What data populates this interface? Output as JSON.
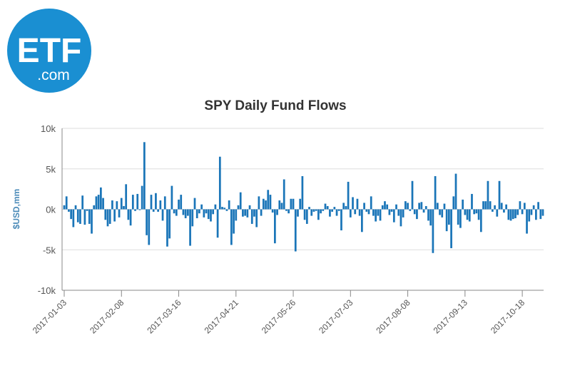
{
  "brand": {
    "logo_main": "ETF",
    "logo_sub": ".com",
    "color": "#1a8fd2"
  },
  "chart_data": {
    "type": "bar",
    "title": "SPY Daily Fund Flows",
    "xlabel": "",
    "ylabel": "$USD,mm",
    "ylim": [
      -10000,
      10000
    ],
    "yticks": [
      10000,
      5000,
      0,
      -5000,
      -10000
    ],
    "ytick_labels": [
      "10k",
      "5k",
      "0k",
      "-5k",
      "-10k"
    ],
    "xtick_labels": [
      "2017-01-03",
      "2017-02-08",
      "2017-03-16",
      "2017-04-21",
      "2017-05-26",
      "2017-07-03",
      "2017-08-08",
      "2017-09-13",
      "2017-10-18"
    ],
    "xtick_index": [
      0,
      25,
      50,
      75,
      100,
      125,
      150,
      175,
      200
    ],
    "grid": true,
    "bar_color": "#1a75b8",
    "series": [
      {
        "name": "SPY Daily Fund Flows",
        "values": [
          500,
          1600,
          -300,
          -1200,
          -2200,
          500,
          -1600,
          -1800,
          1700,
          -1900,
          -200,
          -1800,
          -3000,
          500,
          1600,
          1800,
          2700,
          1400,
          -1300,
          -2100,
          -1800,
          1100,
          -1500,
          1000,
          -1000,
          1400,
          400,
          3100,
          -1300,
          -2000,
          1800,
          -200,
          1900,
          -100,
          2900,
          8300,
          -3200,
          -4400,
          1800,
          -300,
          2000,
          -300,
          1100,
          -1400,
          1600,
          -4600,
          -3600,
          2900,
          -500,
          -800,
          1200,
          1800,
          -700,
          -1100,
          -800,
          -4500,
          -2100,
          1400,
          -1100,
          -500,
          600,
          -1000,
          -500,
          -1200,
          -1500,
          -600,
          600,
          -3500,
          6500,
          300,
          200,
          -200,
          1100,
          -4400,
          -3000,
          -1400,
          500,
          2100,
          -900,
          -800,
          -1000,
          500,
          -1800,
          -900,
          -2200,
          1600,
          -800,
          1300,
          1100,
          2400,
          1800,
          -400,
          -4200,
          -700,
          1100,
          800,
          3700,
          -200,
          -500,
          1300,
          1300,
          -5200,
          -900,
          1300,
          4100,
          -1300,
          -1800,
          300,
          -800,
          -300,
          -200,
          -1300,
          -500,
          -200,
          700,
          400,
          -900,
          -300,
          300,
          -800,
          -200,
          -2600,
          800,
          400,
          3400,
          -1000,
          1500,
          -600,
          1300,
          -800,
          -2800,
          800,
          -300,
          -600,
          1600,
          -800,
          -1500,
          -800,
          -1400,
          500,
          1000,
          600,
          -700,
          -300,
          -1600,
          600,
          -800,
          -2100,
          -1000,
          1000,
          800,
          -200,
          3500,
          -600,
          -1200,
          800,
          900,
          -400,
          400,
          -1400,
          -2000,
          -5400,
          4100,
          800,
          -700,
          -1000,
          700,
          -2700,
          -1900,
          -4800,
          1600,
          4400,
          -1900,
          -2300,
          1200,
          -700,
          -1300,
          -1500,
          1900,
          -600,
          -500,
          -1300,
          -2800,
          1000,
          1000,
          3500,
          1000,
          -300,
          500,
          -900,
          3500,
          800,
          -400,
          600,
          -1300,
          -1400,
          -1200,
          -1100,
          -700,
          1000,
          -600,
          800,
          -3000,
          -1500,
          -700,
          500,
          -1300,
          900,
          -1200,
          -800
        ]
      }
    ]
  }
}
